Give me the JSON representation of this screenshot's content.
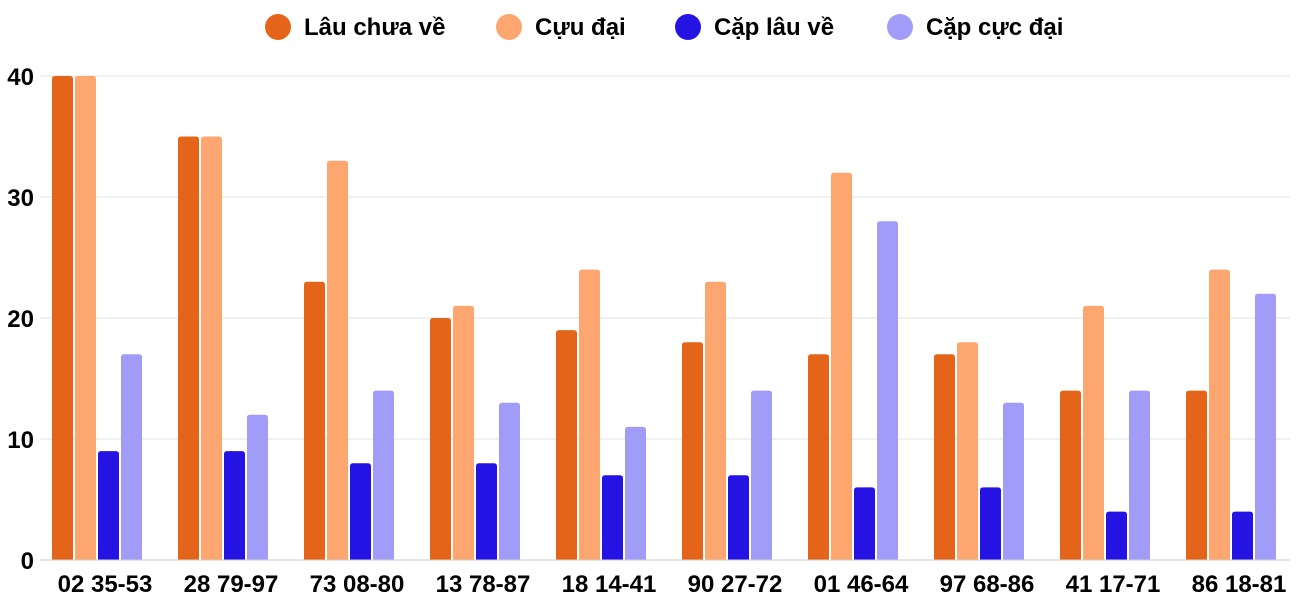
{
  "chart_data": {
    "type": "bar",
    "title": "",
    "xlabel": "",
    "ylabel": "",
    "ylim": [
      0,
      40
    ],
    "yticks": [
      0,
      10,
      20,
      30,
      40
    ],
    "grid": true,
    "legend_position": "top",
    "categories": [
      "02 35-53",
      "28 79-97",
      "73 08-80",
      "13 78-87",
      "18 14-41",
      "90 27-72",
      "01 46-64",
      "97 68-86",
      "41 17-71",
      "86 18-81"
    ],
    "series": [
      {
        "name": "Lâu chưa về",
        "color": "#e4651a",
        "values": [
          40,
          35,
          23,
          20,
          19,
          18,
          17,
          17,
          14,
          14
        ]
      },
      {
        "name": "Cựu đại",
        "color": "#fda66f",
        "values": [
          40,
          35,
          33,
          21,
          24,
          23,
          32,
          18,
          21,
          24
        ]
      },
      {
        "name": "Cặp lâu về",
        "color": "#2413e3",
        "values": [
          9,
          9,
          8,
          8,
          7,
          7,
          6,
          6,
          4,
          4
        ]
      },
      {
        "name": "Cặp cực đại",
        "color": "#a29cf9",
        "values": [
          17,
          12,
          14,
          13,
          11,
          14,
          28,
          13,
          14,
          22
        ]
      }
    ]
  }
}
